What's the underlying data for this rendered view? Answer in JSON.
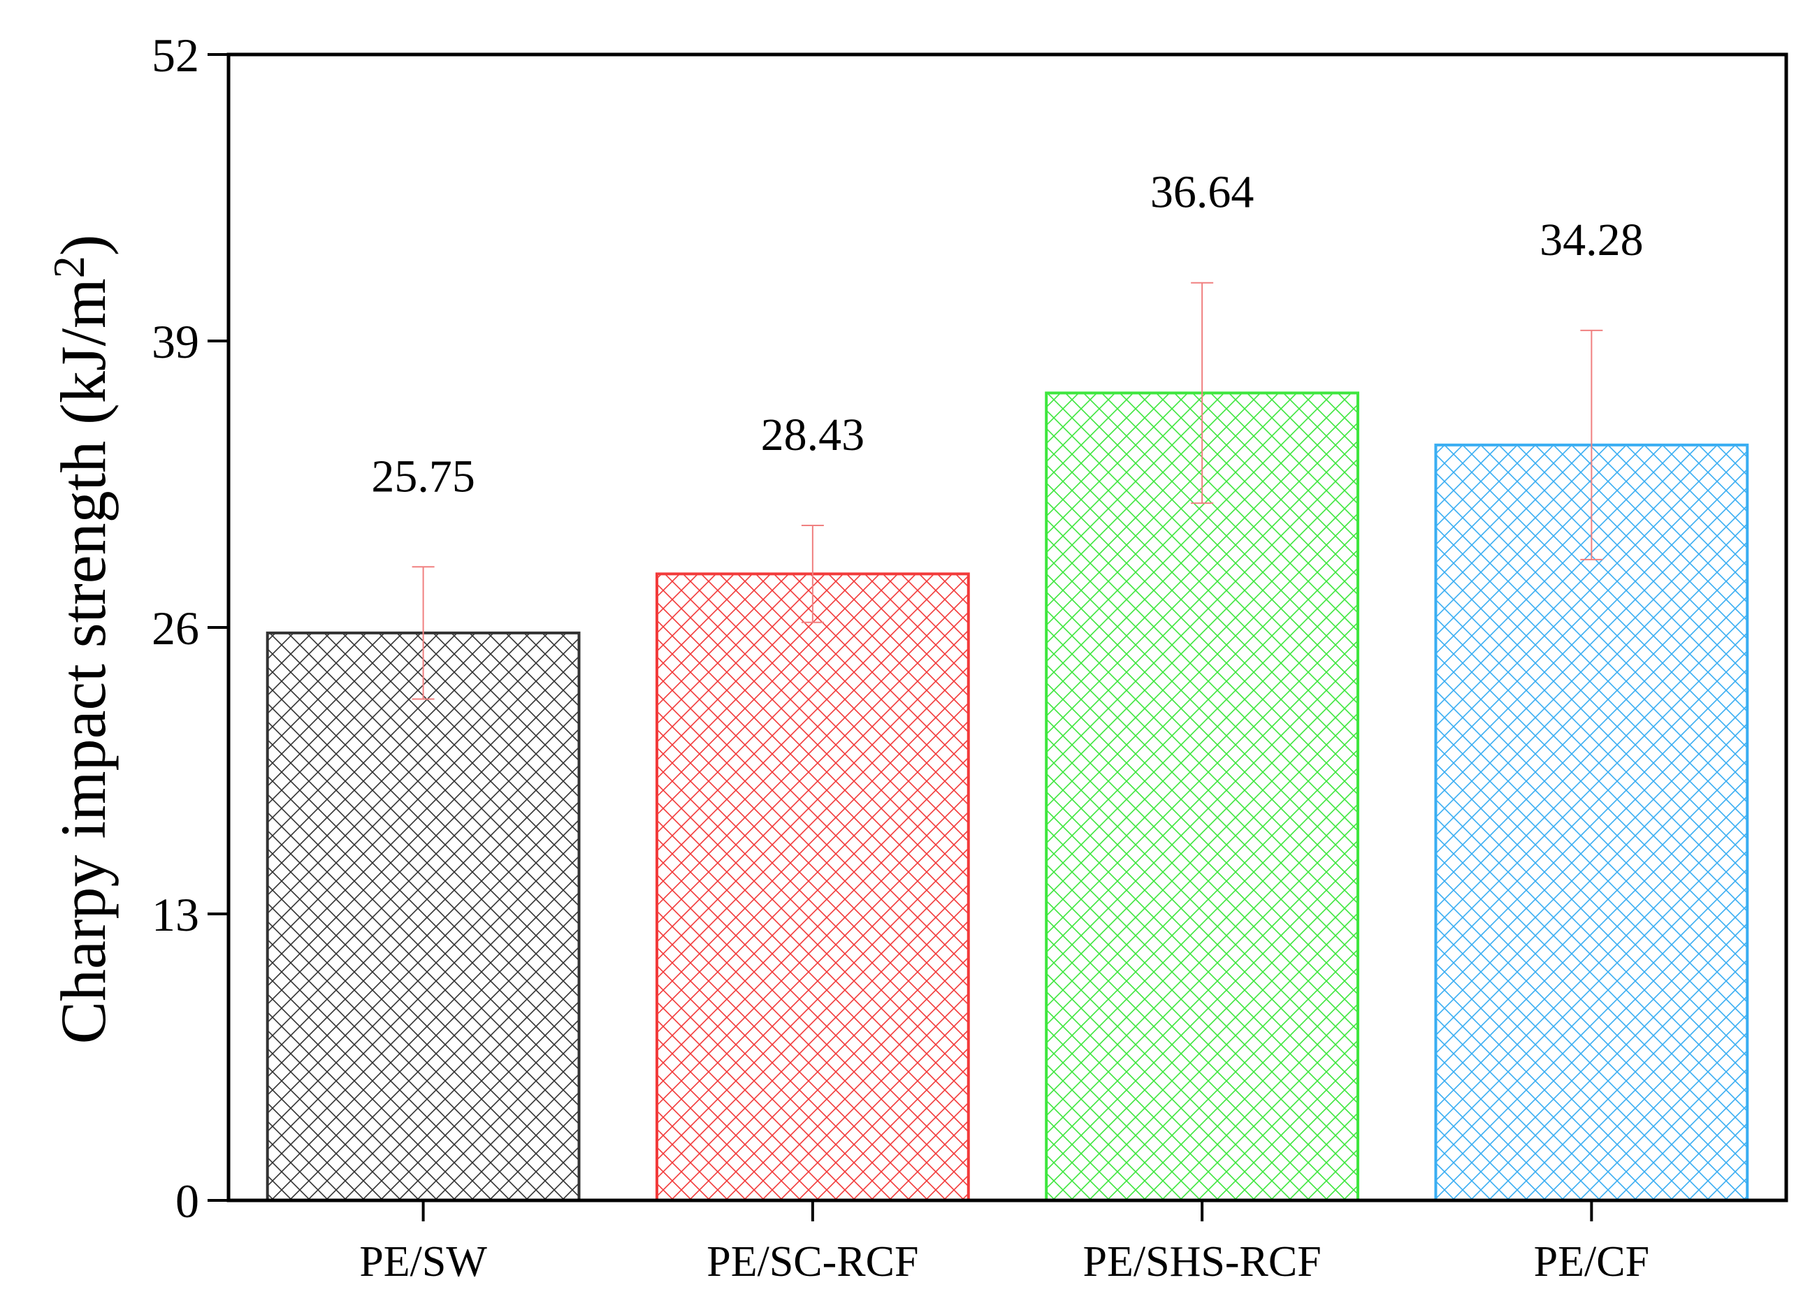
{
  "chart_data": {
    "type": "bar",
    "categories": [
      "PE/SW",
      "PE/SC-RCF",
      "PE/SHS-RCF",
      "PE/CF"
    ],
    "values": [
      25.75,
      28.43,
      36.64,
      34.28
    ],
    "errors": [
      3.0,
      2.2,
      5.0,
      5.2
    ],
    "value_labels": [
      "25.75",
      "28.43",
      "36.64",
      "34.28"
    ],
    "colors": [
      "#333333",
      "#f23a3a",
      "#3ee63e",
      "#3aaef2"
    ],
    "error_color": "#f08080",
    "fill_pattern": "crosshatch",
    "ylabel_main": "Charpy impact strength (kJ/m",
    "ylabel_sup": "2",
    "ylabel_close": ")",
    "xlabel": "",
    "ylim": [
      0,
      52
    ],
    "yticks": [
      0,
      13,
      26,
      39,
      52
    ],
    "ytick_labels": [
      "0",
      "13",
      "26",
      "39",
      "52"
    ],
    "grid": false,
    "legend": "none"
  }
}
